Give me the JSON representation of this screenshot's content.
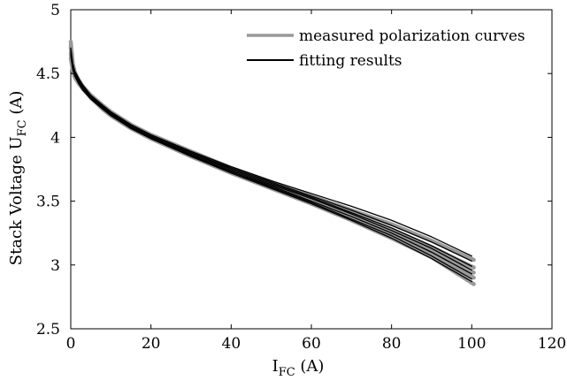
{
  "chart_data": {
    "type": "line",
    "title": "",
    "xlabel": {
      "main": "I",
      "sub": "FC",
      "unit": " (A)"
    },
    "ylabel": {
      "main": "Stack Voltage U",
      "sub": "FC",
      "unit": " (A)"
    },
    "xlim": [
      0,
      120
    ],
    "ylim": [
      2.5,
      5
    ],
    "xticks": [
      0,
      20,
      40,
      60,
      80,
      100,
      120
    ],
    "yticks": [
      2.5,
      3,
      3.5,
      4,
      4.5,
      5
    ],
    "grid": false,
    "legend": {
      "placement": "top-right"
    },
    "series": [
      {
        "name": "measured polarization curves",
        "color": "#999999",
        "kind": "measured",
        "curves": [
          {
            "x": [
              0,
              0.5,
              1,
              2,
              3,
              5,
              8,
              10,
              15,
              20,
              30,
              40,
              50,
              60,
              70,
              80,
              90,
              100.5
            ],
            "y": [
              4.75,
              4.58,
              4.51,
              4.44,
              4.39,
              4.31,
              4.22,
              4.17,
              4.07,
              3.99,
              3.85,
              3.72,
              3.6,
              3.48,
              3.35,
              3.21,
              3.06,
              2.85
            ]
          },
          {
            "x": [
              0,
              0.5,
              1,
              2,
              3,
              5,
              8,
              10,
              15,
              20,
              30,
              40,
              50,
              60,
              70,
              80,
              90,
              100.5
            ],
            "y": [
              4.72,
              4.57,
              4.51,
              4.45,
              4.4,
              4.32,
              4.24,
              4.19,
              4.09,
              4.01,
              3.87,
              3.74,
              3.62,
              3.51,
              3.39,
              3.26,
              3.12,
              2.94
            ]
          },
          {
            "x": [
              0,
              0.5,
              1,
              2,
              3,
              5,
              8,
              10,
              15,
              20,
              30,
              40,
              50,
              60,
              70,
              80,
              90,
              100.5
            ],
            "y": [
              4.7,
              4.56,
              4.5,
              4.44,
              4.4,
              4.33,
              4.25,
              4.2,
              4.1,
              4.02,
              3.89,
              3.76,
              3.65,
              3.54,
              3.43,
              3.32,
              3.19,
              3.04
            ]
          },
          {
            "x": [
              0,
              0.5,
              1,
              2,
              3,
              5,
              8,
              10,
              15,
              20,
              30,
              40,
              50,
              60,
              70,
              80,
              90,
              100.5
            ],
            "y": [
              4.66,
              4.54,
              4.49,
              4.43,
              4.39,
              4.32,
              4.24,
              4.19,
              4.09,
              4.01,
              3.88,
              3.75,
              3.63,
              3.52,
              3.4,
              3.28,
              3.14,
              2.98
            ]
          },
          {
            "x": [
              0,
              0.5,
              1,
              2,
              3,
              5,
              8,
              10,
              15,
              20,
              30,
              40,
              50,
              60,
              70,
              80,
              90,
              100.5
            ],
            "y": [
              4.62,
              4.52,
              4.47,
              4.42,
              4.38,
              4.31,
              4.23,
              4.18,
              4.08,
              4.0,
              3.86,
              3.73,
              3.61,
              3.5,
              3.37,
              3.24,
              3.09,
              2.9
            ]
          }
        ]
      },
      {
        "name": "fitting results",
        "color": "#000000",
        "kind": "fit",
        "curves": [
          {
            "x": [
              0,
              0.5,
              1,
              2,
              3,
              5,
              8,
              10,
              15,
              20,
              30,
              40,
              50,
              60,
              70,
              80,
              90,
              100
            ],
            "y": [
              4.7,
              4.58,
              4.52,
              4.46,
              4.41,
              4.33,
              4.25,
              4.2,
              4.1,
              4.02,
              3.89,
              3.77,
              3.66,
              3.56,
              3.46,
              3.35,
              3.22,
              3.07
            ]
          },
          {
            "x": [
              0,
              0.5,
              1,
              2,
              3,
              5,
              8,
              10,
              15,
              20,
              30,
              40,
              50,
              60,
              70,
              80,
              90,
              100
            ],
            "y": [
              4.69,
              4.57,
              4.51,
              4.45,
              4.4,
              4.32,
              4.24,
              4.19,
              4.09,
              4.01,
              3.88,
              3.76,
              3.65,
              3.54,
              3.43,
              3.31,
              3.18,
              3.03
            ]
          },
          {
            "x": [
              0,
              0.5,
              1,
              2,
              3,
              5,
              8,
              10,
              15,
              20,
              30,
              40,
              50,
              60,
              70,
              80,
              90,
              100
            ],
            "y": [
              4.68,
              4.56,
              4.5,
              4.44,
              4.4,
              4.32,
              4.24,
              4.19,
              4.09,
              4.01,
              3.88,
              3.75,
              3.64,
              3.53,
              3.41,
              3.29,
              3.15,
              2.99
            ]
          },
          {
            "x": [
              0,
              0.5,
              1,
              2,
              3,
              5,
              8,
              10,
              15,
              20,
              30,
              40,
              50,
              60,
              70,
              80,
              90,
              100
            ],
            "y": [
              4.67,
              4.56,
              4.5,
              4.44,
              4.39,
              4.32,
              4.24,
              4.19,
              4.08,
              4.0,
              3.87,
              3.74,
              3.63,
              3.52,
              3.4,
              3.27,
              3.13,
              2.96
            ]
          },
          {
            "x": [
              0,
              0.5,
              1,
              2,
              3,
              5,
              8,
              10,
              15,
              20,
              30,
              40,
              50,
              60,
              70,
              80,
              90,
              100
            ],
            "y": [
              4.66,
              4.55,
              4.49,
              4.43,
              4.39,
              4.31,
              4.23,
              4.18,
              4.08,
              4.0,
              3.86,
              3.73,
              3.62,
              3.5,
              3.38,
              3.25,
              3.1,
              2.93
            ]
          },
          {
            "x": [
              0,
              0.5,
              1,
              2,
              3,
              5,
              8,
              10,
              15,
              20,
              30,
              40,
              50,
              60,
              70,
              80,
              90,
              100
            ],
            "y": [
              4.65,
              4.54,
              4.48,
              4.42,
              4.38,
              4.31,
              4.23,
              4.18,
              4.07,
              3.99,
              3.86,
              3.73,
              3.61,
              3.49,
              3.36,
              3.23,
              3.07,
              2.89
            ]
          },
          {
            "x": [
              0,
              0.5,
              1,
              2,
              3,
              5,
              8,
              10,
              15,
              20,
              30,
              40,
              50,
              60,
              70,
              80,
              90,
              100
            ],
            "y": [
              4.64,
              4.53,
              4.48,
              4.42,
              4.37,
              4.3,
              4.22,
              4.17,
              4.07,
              3.99,
              3.85,
              3.72,
              3.6,
              3.48,
              3.35,
              3.21,
              3.05,
              2.87
            ]
          }
        ]
      }
    ]
  }
}
